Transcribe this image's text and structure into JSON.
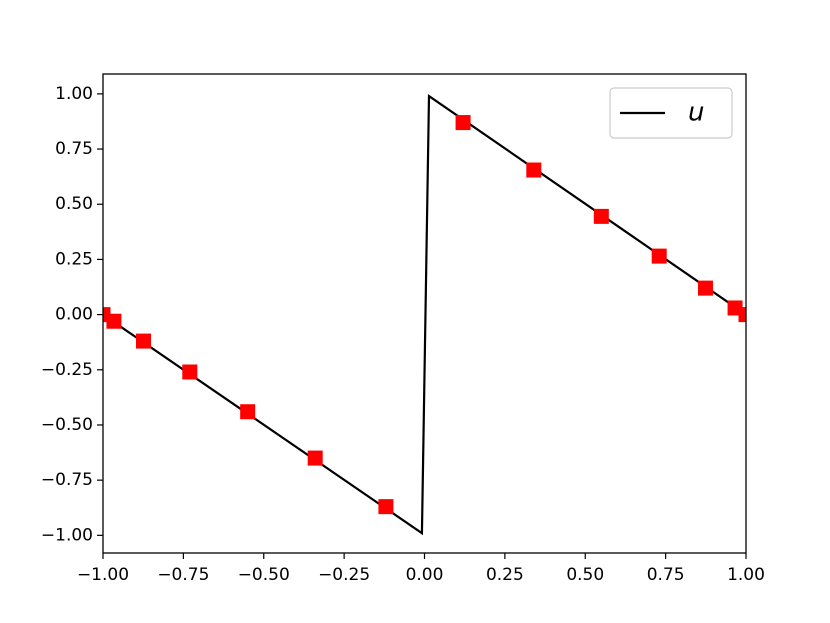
{
  "chart_data": {
    "type": "line",
    "series": [
      {
        "name": "u",
        "color": "#000000",
        "style": "line",
        "x": [
          -1,
          -0.008,
          0.014,
          1
        ],
        "values": [
          0,
          -0.99,
          0.99,
          0
        ]
      },
      {
        "color": "#ff0000",
        "style": "markers",
        "x": [
          -1,
          -0.966,
          -0.874,
          -0.73,
          -0.55,
          -0.34,
          -0.12,
          0.12,
          0.34,
          0.55,
          0.73,
          0.874,
          0.966,
          1
        ],
        "values": [
          0,
          -0.03,
          -0.12,
          -0.26,
          -0.44,
          -0.65,
          -0.87,
          0.87,
          0.655,
          0.445,
          0.265,
          0.12,
          0.03,
          0
        ]
      }
    ],
    "xlim": [
      -1,
      1
    ],
    "ylim": [
      -1.08,
      1.09
    ],
    "xticks": [
      {
        "value": -1,
        "label": "−1.00"
      },
      {
        "value": -0.75,
        "label": "−0.75"
      },
      {
        "value": -0.5,
        "label": "−0.50"
      },
      {
        "value": -0.25,
        "label": "−0.25"
      },
      {
        "value": 0,
        "label": "0.00"
      },
      {
        "value": 0.25,
        "label": "0.25"
      },
      {
        "value": 0.5,
        "label": "0.50"
      },
      {
        "value": 0.75,
        "label": "0.75"
      },
      {
        "value": 1,
        "label": "1.00"
      }
    ],
    "yticks": [
      {
        "value": -1,
        "label": "−1.00"
      },
      {
        "value": -0.75,
        "label": "−0.75"
      },
      {
        "value": -0.5,
        "label": "−0.50"
      },
      {
        "value": -0.25,
        "label": "−0.25"
      },
      {
        "value": 0,
        "label": "0.00"
      },
      {
        "value": 0.25,
        "label": "0.25"
      },
      {
        "value": 0.5,
        "label": "0.50"
      },
      {
        "value": 0.75,
        "label": "0.75"
      },
      {
        "value": 1,
        "label": "1.00"
      }
    ],
    "legend": "upper right"
  }
}
